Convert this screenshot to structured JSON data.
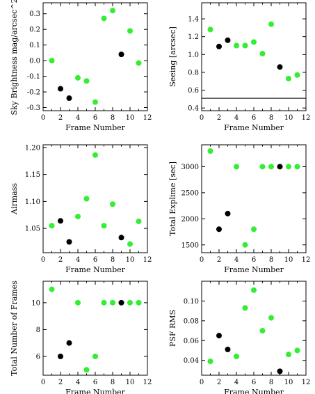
{
  "colors": {
    "green": "#33ee33",
    "black": "#000000",
    "axis": "#000000"
  },
  "chart_data": [
    {
      "type": "scatter",
      "xlabel": "Frame Number",
      "ylabel": "Sky Brightness mag/arcsec^2",
      "xlim": [
        0,
        12
      ],
      "ylim": [
        -0.32,
        0.37
      ],
      "xticks": [
        0,
        2,
        4,
        6,
        8,
        10,
        12
      ],
      "yticks": [
        -0.3,
        -0.2,
        -0.1,
        0.0,
        0.1,
        0.2,
        0.3
      ],
      "ytick_labels": [
        "-0.3",
        "-0.2",
        "-0.1",
        "0.0",
        "0.1",
        "0.2",
        "0.3"
      ],
      "points": [
        {
          "x": 1,
          "y": 0.0,
          "color": "green"
        },
        {
          "x": 2,
          "y": -0.18,
          "color": "black"
        },
        {
          "x": 3,
          "y": -0.24,
          "color": "black"
        },
        {
          "x": 4,
          "y": -0.11,
          "color": "green"
        },
        {
          "x": 5,
          "y": -0.13,
          "color": "green"
        },
        {
          "x": 6,
          "y": -0.265,
          "color": "green"
        },
        {
          "x": 7,
          "y": 0.27,
          "color": "green"
        },
        {
          "x": 8,
          "y": 0.32,
          "color": "green"
        },
        {
          "x": 9,
          "y": 0.04,
          "color": "black"
        },
        {
          "x": 10,
          "y": 0.19,
          "color": "green"
        },
        {
          "x": 11,
          "y": -0.015,
          "color": "green"
        }
      ]
    },
    {
      "type": "scatter",
      "xlabel": "Frame Number",
      "ylabel": "Seeing [arcsec]",
      "xlim": [
        0,
        12
      ],
      "ylim": [
        0.37,
        1.58
      ],
      "xticks": [
        0,
        2,
        4,
        6,
        8,
        10,
        12
      ],
      "yticks": [
        0.4,
        0.6,
        0.8,
        1.0,
        1.2,
        1.4
      ],
      "ytick_labels": [
        "0.4",
        "0.6",
        "0.8",
        "1.0",
        "1.2",
        "1.4"
      ],
      "hline": 0.51,
      "points": [
        {
          "x": 1,
          "y": 1.28,
          "color": "green"
        },
        {
          "x": 2,
          "y": 1.09,
          "color": "black"
        },
        {
          "x": 3,
          "y": 1.16,
          "color": "black"
        },
        {
          "x": 4,
          "y": 1.1,
          "color": "green"
        },
        {
          "x": 5,
          "y": 1.1,
          "color": "green"
        },
        {
          "x": 6,
          "y": 1.14,
          "color": "green"
        },
        {
          "x": 7,
          "y": 1.01,
          "color": "green"
        },
        {
          "x": 8,
          "y": 1.34,
          "color": "green"
        },
        {
          "x": 9,
          "y": 0.86,
          "color": "black"
        },
        {
          "x": 10,
          "y": 0.73,
          "color": "green"
        },
        {
          "x": 11,
          "y": 0.77,
          "color": "green"
        }
      ]
    },
    {
      "type": "scatter",
      "xlabel": "Frame Number",
      "ylabel": "Airmass",
      "xlim": [
        0,
        12
      ],
      "ylim": [
        1.005,
        1.205
      ],
      "xticks": [
        0,
        2,
        4,
        6,
        8,
        10,
        12
      ],
      "yticks": [
        1.05,
        1.1,
        1.15,
        1.2
      ],
      "ytick_labels": [
        "1.05",
        "1.10",
        "1.15",
        "1.20"
      ],
      "points": [
        {
          "x": 1,
          "y": 1.055,
          "color": "green"
        },
        {
          "x": 2,
          "y": 1.064,
          "color": "black"
        },
        {
          "x": 3,
          "y": 1.025,
          "color": "black"
        },
        {
          "x": 4,
          "y": 1.072,
          "color": "green"
        },
        {
          "x": 5,
          "y": 1.105,
          "color": "green"
        },
        {
          "x": 6,
          "y": 1.186,
          "color": "green"
        },
        {
          "x": 7,
          "y": 1.055,
          "color": "green"
        },
        {
          "x": 8,
          "y": 1.095,
          "color": "green"
        },
        {
          "x": 9,
          "y": 1.033,
          "color": "black"
        },
        {
          "x": 10,
          "y": 1.021,
          "color": "green"
        },
        {
          "x": 11,
          "y": 1.063,
          "color": "green"
        }
      ]
    },
    {
      "type": "scatter",
      "xlabel": "Frame Number",
      "ylabel": "Total Explime [sec]",
      "xlim": [
        0,
        12
      ],
      "ylim": [
        1350,
        3420
      ],
      "xticks": [
        0,
        2,
        4,
        6,
        8,
        10,
        12
      ],
      "yticks": [
        1500,
        2000,
        2500,
        3000
      ],
      "ytick_labels": [
        "1500",
        "2000",
        "2500",
        "3000"
      ],
      "points": [
        {
          "x": 1,
          "y": 3300,
          "color": "green"
        },
        {
          "x": 2,
          "y": 1800,
          "color": "black"
        },
        {
          "x": 3,
          "y": 2100,
          "color": "black"
        },
        {
          "x": 4,
          "y": 3000,
          "color": "green"
        },
        {
          "x": 5,
          "y": 1500,
          "color": "green"
        },
        {
          "x": 6,
          "y": 1800,
          "color": "green"
        },
        {
          "x": 7,
          "y": 3000,
          "color": "green"
        },
        {
          "x": 8,
          "y": 3000,
          "color": "green"
        },
        {
          "x": 9,
          "y": 3000,
          "color": "black"
        },
        {
          "x": 10,
          "y": 3000,
          "color": "green"
        },
        {
          "x": 11,
          "y": 3000,
          "color": "green"
        }
      ]
    },
    {
      "type": "scatter",
      "xlabel": "Frame Number",
      "ylabel": "Total Number of Frames",
      "xlim": [
        0,
        12
      ],
      "ylim": [
        4.6,
        11.6
      ],
      "xticks": [
        0,
        2,
        4,
        6,
        8,
        10,
        12
      ],
      "yticks": [
        6,
        8,
        10
      ],
      "ytick_labels": [
        "6",
        "8",
        "10"
      ],
      "points": [
        {
          "x": 1,
          "y": 11,
          "color": "green"
        },
        {
          "x": 2,
          "y": 6,
          "color": "black"
        },
        {
          "x": 3,
          "y": 7,
          "color": "black"
        },
        {
          "x": 4,
          "y": 10,
          "color": "green"
        },
        {
          "x": 5,
          "y": 5,
          "color": "green"
        },
        {
          "x": 6,
          "y": 6,
          "color": "green"
        },
        {
          "x": 7,
          "y": 10,
          "color": "green"
        },
        {
          "x": 8,
          "y": 10,
          "color": "green"
        },
        {
          "x": 9,
          "y": 10,
          "color": "black"
        },
        {
          "x": 10,
          "y": 10,
          "color": "green"
        },
        {
          "x": 11,
          "y": 10,
          "color": "green"
        }
      ]
    },
    {
      "type": "scatter",
      "xlabel": "Frame Number",
      "ylabel": "PSF RMS",
      "xlim": [
        0,
        12
      ],
      "ylim": [
        0.025,
        0.12
      ],
      "xticks": [
        0,
        2,
        4,
        6,
        8,
        10,
        12
      ],
      "yticks": [
        0.04,
        0.06,
        0.08,
        0.1
      ],
      "ytick_labels": [
        "0.04",
        "0.06",
        "0.08",
        "0.10"
      ],
      "points": [
        {
          "x": 1,
          "y": 0.039,
          "color": "green"
        },
        {
          "x": 2,
          "y": 0.065,
          "color": "black"
        },
        {
          "x": 3,
          "y": 0.051,
          "color": "black"
        },
        {
          "x": 4,
          "y": 0.044,
          "color": "green"
        },
        {
          "x": 5,
          "y": 0.093,
          "color": "green"
        },
        {
          "x": 6,
          "y": 0.111,
          "color": "green"
        },
        {
          "x": 7,
          "y": 0.07,
          "color": "green"
        },
        {
          "x": 8,
          "y": 0.083,
          "color": "green"
        },
        {
          "x": 9,
          "y": 0.029,
          "color": "black"
        },
        {
          "x": 10,
          "y": 0.046,
          "color": "green"
        },
        {
          "x": 11,
          "y": 0.05,
          "color": "green"
        }
      ]
    }
  ]
}
